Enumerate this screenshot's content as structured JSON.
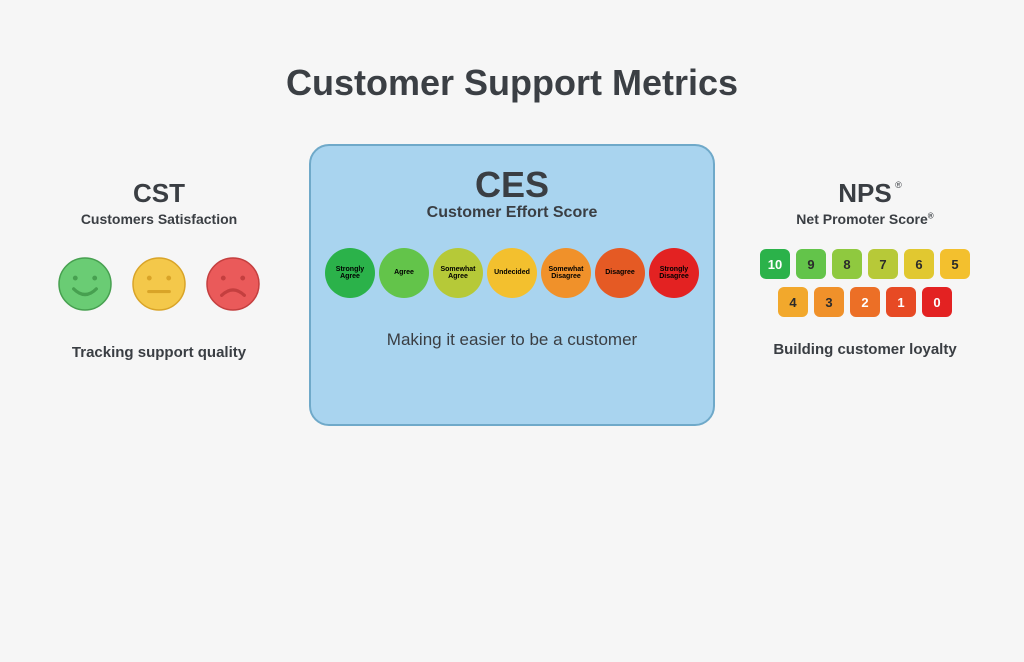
{
  "page": {
    "title": "Customer Support Metrics",
    "background_color": "#f6f6f6",
    "text_color": "#3b3f44",
    "title_fontsize": 36
  },
  "cst": {
    "abbr": "CST",
    "subtitle": "Customers Satisfaction",
    "caption": "Tracking support quality",
    "face_diameter": 54,
    "faces": [
      {
        "mood": "happy",
        "fill": "#6acc74",
        "stroke": "#47a050"
      },
      {
        "mood": "neutral",
        "fill": "#f4c84a",
        "stroke": "#d9a428"
      },
      {
        "mood": "sad",
        "fill": "#ea5a5a",
        "stroke": "#c43f3f"
      }
    ]
  },
  "ces": {
    "card_bg": "#a9d4ef",
    "card_border": "#6fa9c9",
    "abbr": "CES",
    "subtitle": "Customer Effort Score",
    "caption": "Making it easier to be a customer",
    "circle_diameter": 50,
    "circles": [
      {
        "label": "Strongly Agree",
        "color": "#2bb24a"
      },
      {
        "label": "Agree",
        "color": "#63c44a"
      },
      {
        "label": "Somewhat Agree",
        "color": "#b6c938"
      },
      {
        "label": "Undecided",
        "color": "#f3c02e"
      },
      {
        "label": "Somewhat Disagree",
        "color": "#f0912a"
      },
      {
        "label": "Disagree",
        "color": "#e55a24"
      },
      {
        "label": "Strongly Disagree",
        "color": "#e32222"
      }
    ]
  },
  "nps": {
    "abbr": "NPS",
    "registered": "®",
    "subtitle": "Net Promoter Score",
    "caption": "Building customer loyalty",
    "box_size": 30,
    "box_radius": 6,
    "row1": [
      {
        "value": "10",
        "color": "#2bb24a",
        "text": "#ffffff"
      },
      {
        "value": "9",
        "color": "#63c44a",
        "text": "#2b2b2b"
      },
      {
        "value": "8",
        "color": "#8fc93f",
        "text": "#2b2b2b"
      },
      {
        "value": "7",
        "color": "#b7c938",
        "text": "#2b2b2b"
      },
      {
        "value": "6",
        "color": "#e1c830",
        "text": "#2b2b2b"
      },
      {
        "value": "5",
        "color": "#f3c02e",
        "text": "#2b2b2b"
      }
    ],
    "row2": [
      {
        "value": "4",
        "color": "#f2a82c",
        "text": "#2b2b2b"
      },
      {
        "value": "3",
        "color": "#f0912a",
        "text": "#2b2b2b"
      },
      {
        "value": "2",
        "color": "#ec6f26",
        "text": "#ffffff"
      },
      {
        "value": "1",
        "color": "#e74a24",
        "text": "#ffffff"
      },
      {
        "value": "0",
        "color": "#e32222",
        "text": "#ffffff"
      }
    ]
  }
}
